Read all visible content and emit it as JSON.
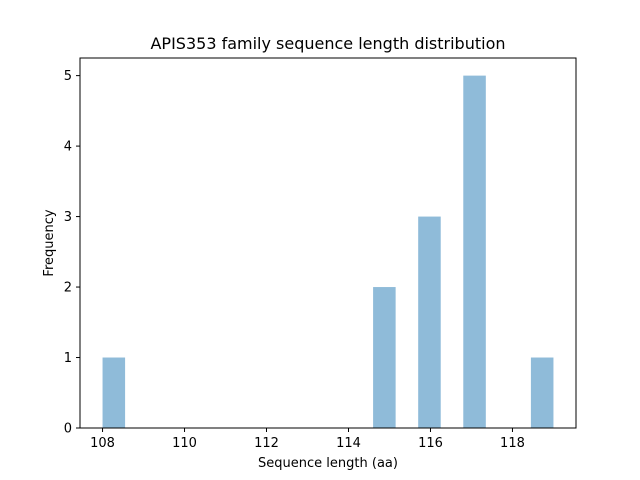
{
  "chart_data": {
    "type": "bar",
    "title": "APIS353 family sequence length distribution",
    "xlabel": "Sequence length (aa)",
    "ylabel": "Frequency",
    "xlim": [
      107.45,
      119.55
    ],
    "ylim": [
      0,
      5.25
    ],
    "xticks": [
      108,
      110,
      112,
      114,
      116,
      118
    ],
    "yticks": [
      0,
      1,
      2,
      3,
      4,
      5
    ],
    "bin_width": 0.55,
    "bars": [
      {
        "x": 108.0,
        "value": 1
      },
      {
        "x": 114.6,
        "value": 2
      },
      {
        "x": 115.7,
        "value": 3
      },
      {
        "x": 116.8,
        "value": 5
      },
      {
        "x": 118.45,
        "value": 1
      }
    ],
    "bar_color": "#8fbbd9",
    "grid": false
  }
}
